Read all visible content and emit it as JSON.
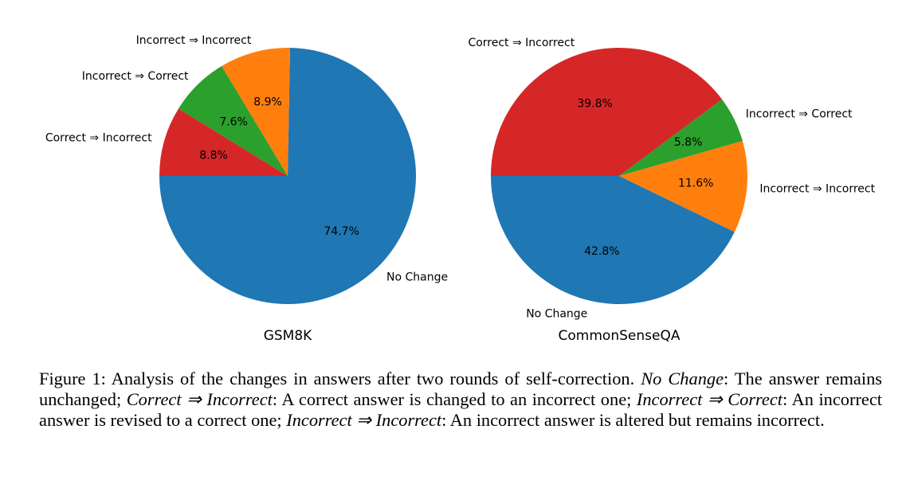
{
  "chart_data": [
    {
      "type": "pie",
      "title": "GSM8K",
      "startangle": 180,
      "counterclock": true,
      "categories": [
        "No Change",
        "Incorrect ⇒ Incorrect",
        "Incorrect ⇒ Correct",
        "Correct ⇒ Incorrect"
      ],
      "values": [
        74.7,
        8.9,
        7.6,
        8.8
      ],
      "value_labels": [
        "74.7%",
        "8.9%",
        "7.6%",
        "8.8%"
      ],
      "colors": [
        "#1f77b4",
        "#ff7f0e",
        "#2ca02c",
        "#d62728"
      ]
    },
    {
      "type": "pie",
      "title": "CommonSenseQA",
      "startangle": 180,
      "counterclock": true,
      "categories": [
        "No Change",
        "Incorrect ⇒ Incorrect",
        "Incorrect ⇒ Correct",
        "Correct ⇒ Incorrect"
      ],
      "values": [
        42.8,
        11.6,
        5.8,
        39.8
      ],
      "value_labels": [
        "42.8%",
        "11.6%",
        "5.8%",
        "39.8%"
      ],
      "colors": [
        "#1f77b4",
        "#ff7f0e",
        "#2ca02c",
        "#d62728"
      ]
    }
  ],
  "caption": {
    "prefix": "Figure 1: Analysis of the changes in answers after two rounds of self-correction. ",
    "t1": "No Change",
    "d1": ": The answer remains unchanged; ",
    "t2": "Correct ⇒ Incorrect",
    "d2": ": A correct answer is changed to an incorrect one; ",
    "t3": "Incorrect ⇒ Correct",
    "d3": ": An incorrect answer is revised to a correct one; ",
    "t4": "Incorrect ⇒ Incorrect",
    "d4": ": An incorrect answer is altered but remains incorrect."
  }
}
